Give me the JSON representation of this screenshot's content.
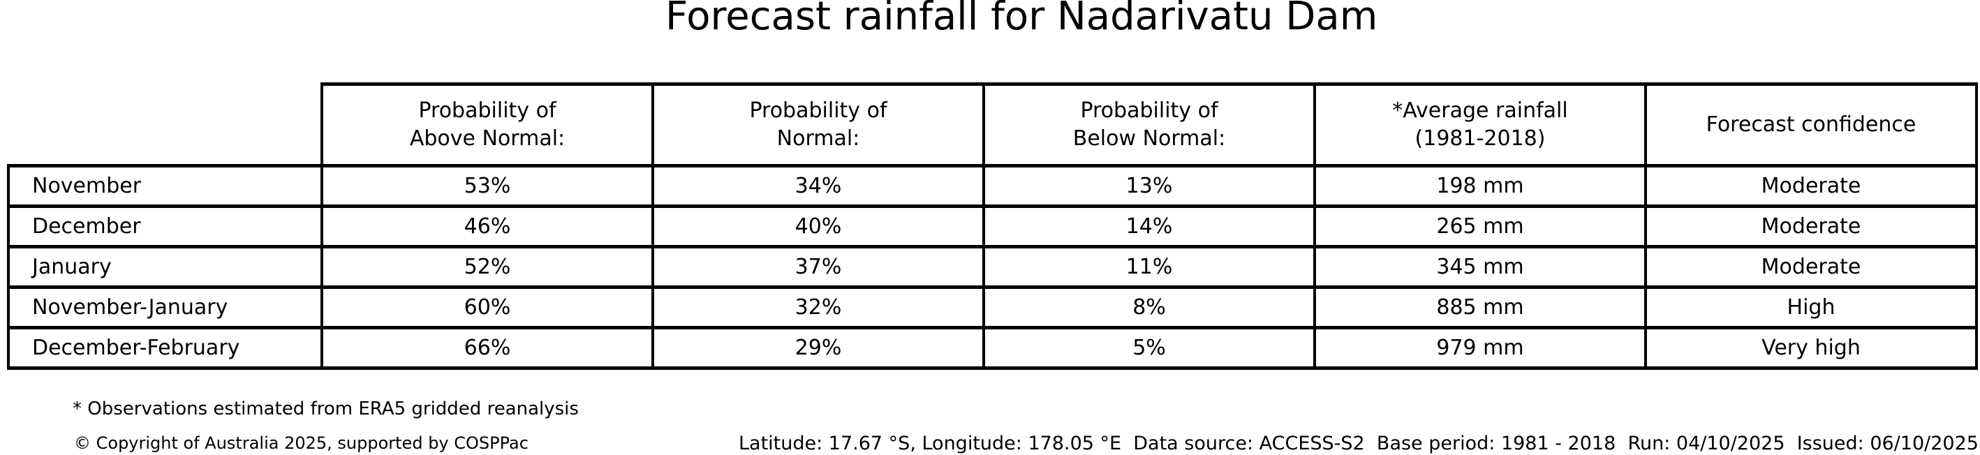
{
  "title": "Forecast rainfall for Nadarivatu Dam",
  "chart_data": {
    "type": "table",
    "title": "Forecast rainfall for Nadarivatu Dam",
    "column_headers": [
      "Probability of\nAbove Normal:",
      "Probability of\nNormal:",
      "Probability of\nBelow Normal:",
      "*Average rainfall\n(1981-2018)",
      "Forecast confidence"
    ],
    "row_labels": [
      "November",
      "December",
      "January",
      "November-January",
      "December-February"
    ],
    "rows": [
      [
        "53%",
        "34%",
        "13%",
        "198 mm",
        "Moderate"
      ],
      [
        "46%",
        "40%",
        "14%",
        "265 mm",
        "Moderate"
      ],
      [
        "52%",
        "37%",
        "11%",
        "345 mm",
        "Moderate"
      ],
      [
        "60%",
        "32%",
        "8%",
        "885 mm",
        "High"
      ],
      [
        "66%",
        "29%",
        "5%",
        "979 mm",
        "Very high"
      ]
    ],
    "probability_values_pct": {
      "above_normal": [
        53,
        46,
        52,
        60,
        66
      ],
      "normal": [
        34,
        40,
        37,
        32,
        29
      ],
      "below_normal": [
        13,
        14,
        11,
        8,
        5
      ]
    },
    "average_rainfall_mm": [
      198,
      265,
      345,
      885,
      979
    ],
    "forecast_confidence": [
      "Moderate",
      "Moderate",
      "Moderate",
      "High",
      "Very high"
    ]
  },
  "footnote": "* Observations estimated from ERA5 gridded reanalysis",
  "footer": {
    "copyright": "© Copyright of Australia 2025, supported by COSPPac",
    "latitude_longitude": "Latitude: 17.67 °S, Longitude: 178.05 °E",
    "data_source": "Data source: ACCESS-S2",
    "base_period": "Base period: 1981 - 2018",
    "run": "Run: 04/10/2025",
    "issued": "Issued: 06/10/2025"
  },
  "colors": {
    "background": "#ffffff",
    "text": "#000000",
    "border": "#000000"
  }
}
